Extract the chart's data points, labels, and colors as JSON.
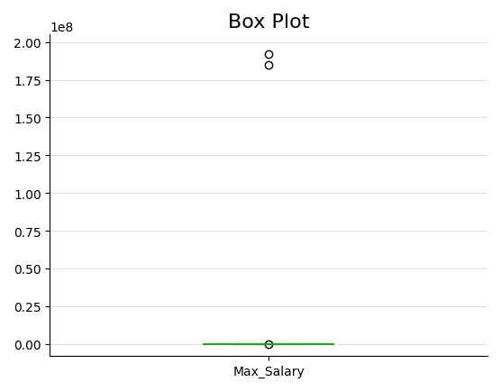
{
  "title": "Box Plot",
  "xlabel": "Max_Salary",
  "ylabel": "",
  "data": [
    0,
    0,
    0,
    0,
    0,
    0,
    0,
    0,
    0,
    0,
    0,
    0,
    0,
    0,
    0,
    0,
    0,
    0,
    0,
    0,
    100000,
    185000000,
    192000000
  ],
  "ylim_min": -8000000,
  "ylim_max": 205000000,
  "box_color": "#2ca02c",
  "flier_marker": "o",
  "figsize": [
    5.56,
    4.35
  ],
  "dpi": 100,
  "grid": true,
  "whisker_color": "#2ca02c",
  "median_color": "#2ca02c",
  "cap_color": "#2ca02c",
  "flier_color": "black",
  "flier_markerfacecolor": "none",
  "title_fontsize": 16
}
